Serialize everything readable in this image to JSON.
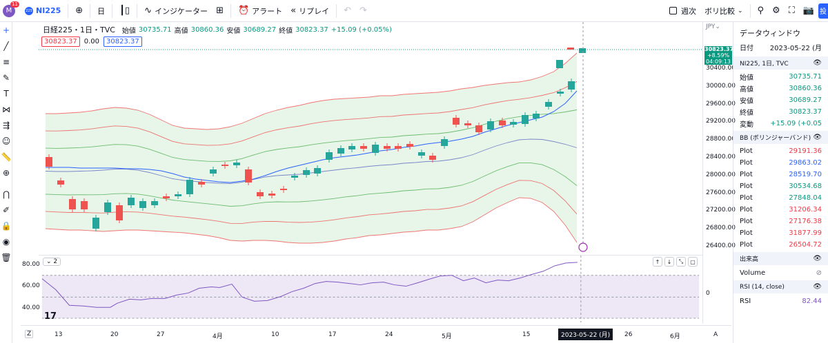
{
  "toolbar": {
    "avatar_letter": "M",
    "notif_count": "11",
    "symbol_icon_text": "225",
    "symbol": "NI225",
    "interval": "日",
    "indicators": "インジケーター",
    "alert": "アラート",
    "replay": "リプレイ",
    "week": "週次",
    "compare": "ボリ比較",
    "publish": "投"
  },
  "legend": {
    "title": "日経225・1日・TVC",
    "open_label": "始値",
    "open": "30735.71",
    "high_label": "高値",
    "high": "30860.36",
    "low_label": "安値",
    "low": "30689.27",
    "close_label": "終値",
    "close": "30823.37",
    "change": "+15.09 (+0.05%)",
    "box_left": "30823.37",
    "box_mid": "0.00",
    "box_right": "30823.37"
  },
  "price_axis": {
    "currency": "JPY",
    "labels": [
      "30400.00",
      "30000.00",
      "29600.00",
      "29200.00",
      "28800.00",
      "28400.00",
      "28000.00",
      "27600.00",
      "27200.00",
      "26800.00",
      "26400.00"
    ],
    "tag_price": "30823.37",
    "tag_change": "+8.59%",
    "tag_time": "04:09:13",
    "rsi_zero": "0"
  },
  "rsi": {
    "label": "2",
    "axis": [
      "80.00",
      "60.00",
      "40.00"
    ]
  },
  "time_axis": {
    "z": "Z",
    "a": "A",
    "labels": [
      "13",
      "20",
      "27",
      "4月",
      "10",
      "17",
      "24",
      "5月",
      "15",
      "26",
      "6月"
    ],
    "highlight": "2023-05-22 (月)"
  },
  "data_window": {
    "title": "データウィンドウ",
    "date_label": "日付",
    "date": "2023-05-22 (月",
    "symbol": "NI225, 1日, TVC",
    "ohlc": [
      {
        "label": "始値",
        "value": "30735.71"
      },
      {
        "label": "高値",
        "value": "30860.36"
      },
      {
        "label": "安値",
        "value": "30689.27"
      },
      {
        "label": "終値",
        "value": "30823.37"
      },
      {
        "label": "変動",
        "value": "+15.09 (+0.05"
      }
    ],
    "bb_title": "BB (ボリンジャーバンド)",
    "plots": [
      {
        "label": "Plot",
        "value": "29191.36",
        "color": "#f23645"
      },
      {
        "label": "Plot",
        "value": "29863.02",
        "color": "#2962ff"
      },
      {
        "label": "Plot",
        "value": "28519.70",
        "color": "#2962ff"
      },
      {
        "label": "Plot",
        "value": "30534.68",
        "color": "#089981"
      },
      {
        "label": "Plot",
        "value": "27848.04",
        "color": "#089981"
      },
      {
        "label": "Plot",
        "value": "31206.34",
        "color": "#f23645"
      },
      {
        "label": "Plot",
        "value": "27176.38",
        "color": "#f23645"
      },
      {
        "label": "Plot",
        "value": "31877.99",
        "color": "#f23645"
      },
      {
        "label": "Plot",
        "value": "26504.72",
        "color": "#f23645"
      }
    ],
    "volume_title": "出来高",
    "volume_label": "Volume",
    "rsi_title": "RSI (14, close)",
    "rsi_label": "RSI",
    "rsi_value": "82.44"
  },
  "colors": {
    "up": "#26a69a",
    "down": "#ef5350",
    "accent": "#2962ff"
  }
}
